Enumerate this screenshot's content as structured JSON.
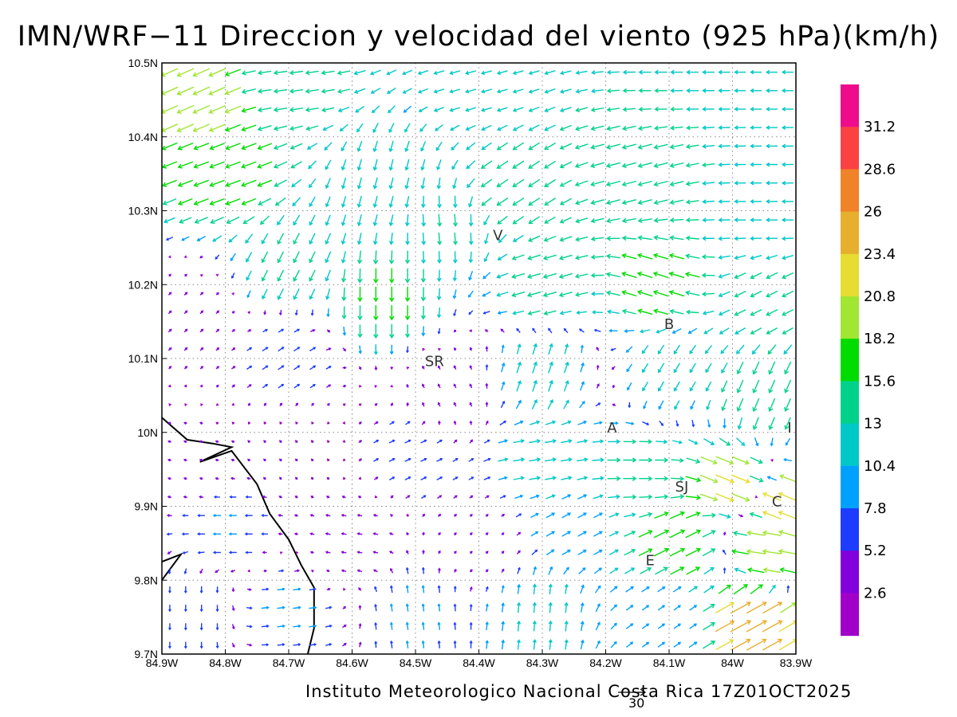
{
  "title": "IMN/WRF−11 Direccion y velocidad del viento (925 hPa)(km/h)",
  "footer": "Instituto Meteorologico Nacional Costa Rica 17Z01OCT2025",
  "reference_vector": {
    "label": "30",
    "value_kmh": 30
  },
  "map": {
    "lon_range": [
      -84.9,
      -83.9
    ],
    "lat_range": [
      9.7,
      10.5
    ],
    "lon_ticks": [
      {
        "value": -84.9,
        "label": "84.9W"
      },
      {
        "value": -84.8,
        "label": "84.8W"
      },
      {
        "value": -84.7,
        "label": "84.7W"
      },
      {
        "value": -84.6,
        "label": "84.6W"
      },
      {
        "value": -84.5,
        "label": "84.5W"
      },
      {
        "value": -84.4,
        "label": "84.4W"
      },
      {
        "value": -84.3,
        "label": "84.3W"
      },
      {
        "value": -84.2,
        "label": "84.2W"
      },
      {
        "value": -84.1,
        "label": "84.1W"
      },
      {
        "value": -84.0,
        "label": "84W"
      },
      {
        "value": -83.9,
        "label": "83.9W"
      }
    ],
    "lat_ticks": [
      {
        "value": 9.7,
        "label": "9.7N"
      },
      {
        "value": 9.8,
        "label": "9.8N"
      },
      {
        "value": 9.9,
        "label": "9.9N"
      },
      {
        "value": 10.0,
        "label": "10N"
      },
      {
        "value": 10.1,
        "label": "10.1N"
      },
      {
        "value": 10.2,
        "label": "10.2N"
      },
      {
        "value": 10.3,
        "label": "10.3N"
      },
      {
        "value": 10.4,
        "label": "10.4N"
      },
      {
        "value": 10.5,
        "label": "10.5N"
      }
    ],
    "grid": true,
    "cities": [
      {
        "label": "V",
        "lon": -84.37,
        "lat": 10.26
      },
      {
        "label": "SR",
        "lon": -84.47,
        "lat": 10.09
      },
      {
        "label": "B",
        "lon": -84.1,
        "lat": 10.14
      },
      {
        "label": "A",
        "lon": -84.19,
        "lat": 10.0
      },
      {
        "label": "SJ",
        "lon": -84.08,
        "lat": 9.92
      },
      {
        "label": "C",
        "lon": -83.93,
        "lat": 9.9
      },
      {
        "label": "E",
        "lon": -84.13,
        "lat": 9.82
      },
      {
        "label": "I",
        "lon": -83.91,
        "lat": 10.0
      }
    ],
    "coastline": [
      [
        -84.9,
        10.02
      ],
      [
        -84.86,
        9.99
      ],
      [
        -84.82,
        9.985
      ],
      [
        -84.79,
        9.98
      ],
      [
        -84.84,
        9.96
      ],
      [
        -84.79,
        9.975
      ],
      [
        -84.75,
        9.93
      ],
      [
        -84.73,
        9.89
      ],
      [
        -84.7,
        9.855
      ],
      [
        -84.68,
        9.82
      ],
      [
        -84.66,
        9.79
      ],
      [
        -84.66,
        9.735
      ],
      [
        -84.67,
        9.7
      ]
    ],
    "peninsula": [
      [
        -84.9,
        9.825
      ],
      [
        -84.87,
        9.835
      ],
      [
        -84.9,
        9.8
      ]
    ]
  },
  "colorbar": {
    "labels": [
      "31.2",
      "28.6",
      "26",
      "23.4",
      "20.8",
      "18.2",
      "15.6",
      "13",
      "10.4",
      "7.8",
      "5.2",
      "2.6"
    ],
    "colors": [
      "#ee0c8c",
      "#fb4141",
      "#f08228",
      "#e6af2d",
      "#e6dc32",
      "#a0e632",
      "#00dc00",
      "#00d28c",
      "#00c8c8",
      "#00a0ff",
      "#1e3cff",
      "#8200dc",
      "#a000c8"
    ]
  },
  "chart_data": {
    "type": "vector-field",
    "units": "km/h",
    "level": "925 hPa",
    "bounds": {
      "lon": [
        -84.9,
        -83.9
      ],
      "lat": [
        9.7,
        10.5
      ]
    },
    "grid_step_deg": 0.025,
    "note": "Wind vectors (u = eastward, v = northward, km/h) sampled from the regional pattern shown.",
    "regions": [
      {
        "lon": -84.85,
        "lat": 10.46,
        "u": -18,
        "v": -8
      },
      {
        "lon": -84.7,
        "lat": 10.48,
        "u": -14,
        "v": -2
      },
      {
        "lon": -84.4,
        "lat": 10.48,
        "u": -11,
        "v": -3
      },
      {
        "lon": -84.1,
        "lat": 10.48,
        "u": -13,
        "v": 0
      },
      {
        "lon": -83.95,
        "lat": 10.45,
        "u": -12,
        "v": 0
      },
      {
        "lon": -84.8,
        "lat": 10.35,
        "u": -16,
        "v": -6
      },
      {
        "lon": -84.55,
        "lat": 10.33,
        "u": -3,
        "v": -12
      },
      {
        "lon": -84.45,
        "lat": 10.28,
        "u": 1,
        "v": -13
      },
      {
        "lon": -84.35,
        "lat": 10.33,
        "u": -12,
        "v": -8
      },
      {
        "lon": -84.15,
        "lat": 10.35,
        "u": -15,
        "v": -4
      },
      {
        "lon": -83.95,
        "lat": 10.3,
        "u": -12,
        "v": 0
      },
      {
        "lon": -84.7,
        "lat": 10.22,
        "u": -6,
        "v": -12
      },
      {
        "lon": -84.55,
        "lat": 10.18,
        "u": 0,
        "v": -16
      },
      {
        "lon": -84.3,
        "lat": 10.2,
        "u": -14,
        "v": -4
      },
      {
        "lon": -84.12,
        "lat": 10.2,
        "u": -16,
        "v": 5
      },
      {
        "lon": -83.95,
        "lat": 10.18,
        "u": -12,
        "v": -6
      },
      {
        "lon": -84.85,
        "lat": 10.15,
        "u": 3,
        "v": 3
      },
      {
        "lon": -84.7,
        "lat": 10.1,
        "u": 6,
        "v": 4
      },
      {
        "lon": -84.45,
        "lat": 10.05,
        "u": -2,
        "v": 4
      },
      {
        "lon": -84.3,
        "lat": 10.08,
        "u": 4,
        "v": 12
      },
      {
        "lon": -84.1,
        "lat": 10.08,
        "u": -6,
        "v": -10
      },
      {
        "lon": -83.95,
        "lat": 10.05,
        "u": -6,
        "v": -14
      },
      {
        "lon": -84.85,
        "lat": 9.95,
        "u": -3,
        "v": 1
      },
      {
        "lon": -84.7,
        "lat": 9.97,
        "u": -2,
        "v": 2
      },
      {
        "lon": -84.5,
        "lat": 9.97,
        "u": 6,
        "v": 3
      },
      {
        "lon": -84.3,
        "lat": 9.97,
        "u": 12,
        "v": 2
      },
      {
        "lon": -84.15,
        "lat": 9.95,
        "u": 14,
        "v": 0
      },
      {
        "lon": -84.0,
        "lat": 9.93,
        "u": 20,
        "v": -8
      },
      {
        "lon": -83.92,
        "lat": 9.9,
        "u": -20,
        "v": 8
      },
      {
        "lon": -84.8,
        "lat": 9.87,
        "u": -8,
        "v": 0
      },
      {
        "lon": -84.6,
        "lat": 9.85,
        "u": -5,
        "v": 1
      },
      {
        "lon": -84.4,
        "lat": 9.85,
        "u": 2,
        "v": 2
      },
      {
        "lon": -84.25,
        "lat": 9.87,
        "u": 9,
        "v": 5
      },
      {
        "lon": -84.08,
        "lat": 9.85,
        "u": 16,
        "v": 8
      },
      {
        "lon": -83.95,
        "lat": 9.84,
        "u": -20,
        "v": 3
      },
      {
        "lon": -84.85,
        "lat": 9.76,
        "u": 0,
        "v": -7
      },
      {
        "lon": -84.7,
        "lat": 9.76,
        "u": 8,
        "v": 1
      },
      {
        "lon": -84.5,
        "lat": 9.76,
        "u": -1,
        "v": 8
      },
      {
        "lon": -84.3,
        "lat": 9.76,
        "u": 1,
        "v": 11
      },
      {
        "lon": -84.1,
        "lat": 9.75,
        "u": 7,
        "v": 5
      },
      {
        "lon": -83.97,
        "lat": 9.75,
        "u": 22,
        "v": 12
      }
    ]
  }
}
